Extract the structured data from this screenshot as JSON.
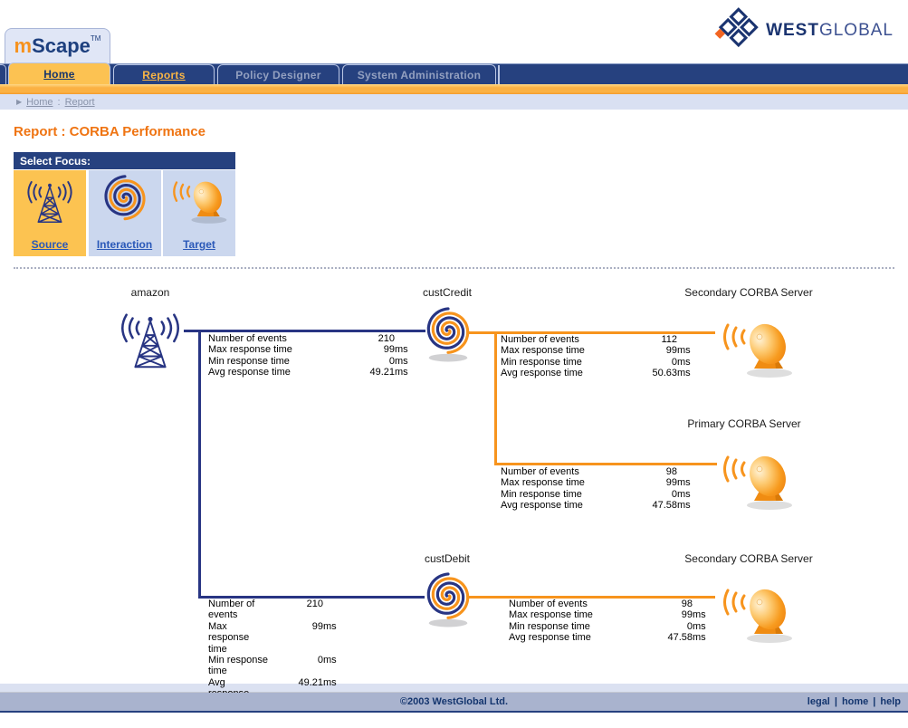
{
  "brand": {
    "logo_m": "m",
    "logo_rest": "Scape",
    "logo_tm": "TM",
    "westglobal_west": "WEST",
    "westglobal_global": "GLOBAL"
  },
  "nav": {
    "tabs": [
      {
        "label": "Home",
        "state": "active"
      },
      {
        "label": "Reports",
        "state": "link"
      },
      {
        "label": "Policy Designer",
        "state": "inactive"
      },
      {
        "label": "System Administration",
        "state": "inactive"
      }
    ]
  },
  "breadcrumb": {
    "arrow": "▶",
    "items": [
      "Home",
      "Report"
    ],
    "separator": ":"
  },
  "page": {
    "title": "Report : CORBA Performance"
  },
  "focus": {
    "header": "Select Focus:",
    "options": [
      {
        "label": "Source",
        "icon": "antenna-icon",
        "selected": true
      },
      {
        "label": "Interaction",
        "icon": "spiral-icon",
        "selected": false
      },
      {
        "label": "Target",
        "icon": "dish-icon",
        "selected": false
      }
    ]
  },
  "diagram": {
    "nodes": [
      {
        "id": "amazon",
        "label": "amazon",
        "icon": "antenna"
      },
      {
        "id": "custCredit",
        "label": "custCredit",
        "icon": "spiral"
      },
      {
        "id": "secondary1",
        "label": "Secondary CORBA Server",
        "icon": "dish"
      },
      {
        "id": "primary",
        "label": "Primary CORBA Server",
        "icon": "dish"
      },
      {
        "id": "custDebit",
        "label": "custDebit",
        "icon": "spiral"
      },
      {
        "id": "secondary2",
        "label": "Secondary CORBA Server",
        "icon": "dish"
      }
    ],
    "stats_labels": [
      "Number of events",
      "Max response time",
      "Min response time",
      "Avg response time"
    ],
    "stats": [
      {
        "edge": "amazon-custCredit",
        "values": [
          "210",
          "99ms",
          "0ms",
          "49.21ms"
        ]
      },
      {
        "edge": "custCredit-secondary",
        "values": [
          "112",
          "99ms",
          "0ms",
          "50.63ms"
        ]
      },
      {
        "edge": "custCredit-primary",
        "values": [
          "98",
          "99ms",
          "0ms",
          "47.58ms"
        ]
      },
      {
        "edge": "amazon-custDebit",
        "values": [
          "210",
          "99ms",
          "0ms",
          "49.21ms"
        ]
      },
      {
        "edge": "custDebit-secondary",
        "values": [
          "98",
          "99ms",
          "0ms",
          "47.58ms"
        ]
      }
    ]
  },
  "footer": {
    "copyright": "©2003 WestGlobal Ltd.",
    "links": [
      "legal",
      "home",
      "help"
    ],
    "separator": "|"
  },
  "colors": {
    "navy": "#26417f",
    "diagram_navy": "#283583",
    "orange": "#f7941d",
    "tab_yellow": "#fcc252",
    "cell_blue": "#cbd7ee"
  }
}
